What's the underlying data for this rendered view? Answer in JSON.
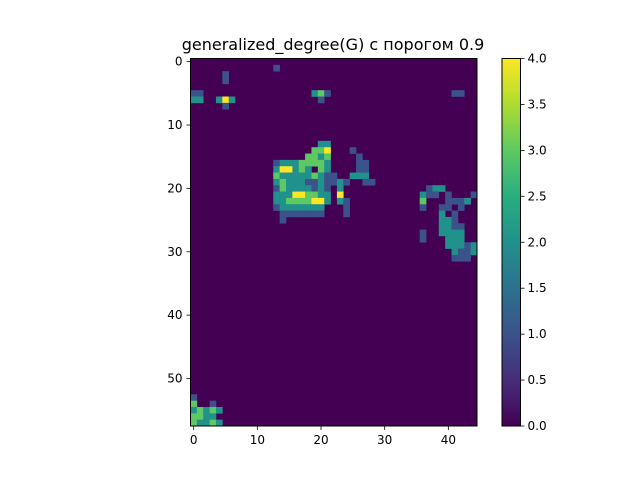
{
  "chart_data": {
    "type": "heatmap",
    "title": "generalized_degree(G) с порогом 0.9",
    "xlabel": "",
    "ylabel": "",
    "n_rows": 58,
    "n_cols": 45,
    "x_ticks": [
      0,
      10,
      20,
      30,
      40
    ],
    "y_ticks": [
      0,
      10,
      20,
      30,
      40,
      50
    ],
    "colormap": "viridis",
    "colorbar": {
      "min": 0.0,
      "max": 4.0,
      "ticks": [
        "0.0",
        "0.5",
        "1.0",
        "1.5",
        "2.0",
        "2.5",
        "3.0",
        "3.5",
        "4.0"
      ]
    },
    "grid": false,
    "cells": [
      [
        1,
        13,
        1
      ],
      [
        2,
        5,
        1
      ],
      [
        3,
        5,
        1
      ],
      [
        5,
        0,
        1
      ],
      [
        5,
        1,
        1
      ],
      [
        5,
        19,
        2
      ],
      [
        5,
        20,
        3
      ],
      [
        5,
        21,
        1
      ],
      [
        5,
        41,
        1
      ],
      [
        5,
        42,
        1
      ],
      [
        6,
        0,
        2
      ],
      [
        6,
        1,
        2
      ],
      [
        6,
        4,
        2
      ],
      [
        6,
        5,
        4
      ],
      [
        6,
        6,
        2
      ],
      [
        6,
        20,
        1
      ],
      [
        7,
        5,
        1
      ],
      [
        13,
        20,
        2
      ],
      [
        13,
        21,
        2
      ],
      [
        14,
        19,
        3
      ],
      [
        14,
        20,
        3
      ],
      [
        14,
        21,
        4
      ],
      [
        14,
        25,
        1
      ],
      [
        15,
        18,
        3
      ],
      [
        15,
        19,
        3
      ],
      [
        15,
        20,
        2
      ],
      [
        15,
        21,
        3
      ],
      [
        15,
        26,
        1
      ],
      [
        16,
        13,
        1
      ],
      [
        16,
        14,
        2
      ],
      [
        16,
        15,
        2
      ],
      [
        16,
        16,
        2
      ],
      [
        16,
        17,
        3
      ],
      [
        16,
        18,
        3
      ],
      [
        16,
        19,
        3
      ],
      [
        16,
        20,
        3
      ],
      [
        16,
        21,
        2
      ],
      [
        16,
        26,
        1
      ],
      [
        16,
        27,
        1
      ],
      [
        17,
        13,
        2
      ],
      [
        17,
        14,
        4
      ],
      [
        17,
        15,
        4
      ],
      [
        17,
        16,
        2
      ],
      [
        17,
        17,
        3
      ],
      [
        17,
        18,
        2
      ],
      [
        17,
        20,
        3
      ],
      [
        17,
        21,
        2
      ],
      [
        17,
        26,
        1
      ],
      [
        17,
        27,
        1
      ],
      [
        18,
        13,
        3
      ],
      [
        18,
        14,
        2
      ],
      [
        18,
        15,
        2
      ],
      [
        18,
        16,
        2
      ],
      [
        18,
        17,
        2
      ],
      [
        18,
        18,
        2
      ],
      [
        18,
        19,
        3
      ],
      [
        18,
        20,
        2
      ],
      [
        18,
        21,
        1
      ],
      [
        18,
        22,
        1
      ],
      [
        18,
        25,
        2
      ],
      [
        18,
        26,
        2
      ],
      [
        18,
        27,
        2
      ],
      [
        19,
        13,
        2
      ],
      [
        19,
        14,
        3
      ],
      [
        19,
        15,
        2
      ],
      [
        19,
        16,
        2
      ],
      [
        19,
        17,
        2
      ],
      [
        19,
        18,
        1
      ],
      [
        19,
        19,
        1
      ],
      [
        19,
        20,
        2
      ],
      [
        19,
        21,
        1
      ],
      [
        19,
        22,
        1
      ],
      [
        19,
        23,
        2
      ],
      [
        19,
        24,
        1
      ],
      [
        19,
        27,
        1
      ],
      [
        19,
        28,
        1
      ],
      [
        20,
        13,
        1
      ],
      [
        20,
        14,
        3
      ],
      [
        20,
        15,
        2
      ],
      [
        20,
        16,
        2
      ],
      [
        20,
        17,
        2
      ],
      [
        20,
        18,
        2
      ],
      [
        20,
        19,
        1
      ],
      [
        20,
        20,
        2
      ],
      [
        20,
        21,
        1
      ],
      [
        20,
        23,
        2
      ],
      [
        20,
        37,
        1
      ],
      [
        20,
        38,
        2
      ],
      [
        20,
        39,
        2
      ],
      [
        21,
        13,
        2
      ],
      [
        21,
        14,
        2
      ],
      [
        21,
        15,
        2
      ],
      [
        21,
        16,
        4
      ],
      [
        21,
        17,
        4
      ],
      [
        21,
        18,
        3
      ],
      [
        21,
        19,
        3
      ],
      [
        21,
        20,
        2
      ],
      [
        21,
        21,
        2
      ],
      [
        21,
        23,
        4
      ],
      [
        21,
        36,
        2
      ],
      [
        21,
        37,
        1
      ],
      [
        21,
        38,
        1
      ],
      [
        21,
        40,
        1
      ],
      [
        21,
        44,
        1
      ],
      [
        22,
        13,
        2
      ],
      [
        22,
        14,
        2
      ],
      [
        22,
        15,
        3
      ],
      [
        22,
        16,
        3
      ],
      [
        22,
        17,
        3
      ],
      [
        22,
        18,
        3
      ],
      [
        22,
        19,
        4
      ],
      [
        22,
        20,
        4
      ],
      [
        22,
        21,
        2
      ],
      [
        22,
        23,
        2
      ],
      [
        22,
        24,
        1
      ],
      [
        22,
        36,
        3
      ],
      [
        22,
        40,
        1
      ],
      [
        22,
        41,
        1
      ],
      [
        22,
        42,
        1
      ],
      [
        22,
        43,
        2
      ],
      [
        23,
        13,
        1
      ],
      [
        23,
        14,
        2
      ],
      [
        23,
        15,
        2
      ],
      [
        23,
        16,
        2
      ],
      [
        23,
        17,
        2
      ],
      [
        23,
        18,
        2
      ],
      [
        23,
        19,
        2
      ],
      [
        23,
        20,
        2
      ],
      [
        23,
        24,
        1
      ],
      [
        23,
        36,
        1
      ],
      [
        23,
        39,
        1
      ],
      [
        23,
        40,
        1
      ],
      [
        23,
        42,
        1
      ],
      [
        24,
        14,
        1
      ],
      [
        24,
        15,
        1
      ],
      [
        24,
        16,
        1
      ],
      [
        24,
        17,
        1
      ],
      [
        24,
        18,
        1
      ],
      [
        24,
        19,
        1
      ],
      [
        24,
        20,
        1
      ],
      [
        24,
        24,
        1
      ],
      [
        24,
        39,
        2
      ],
      [
        24,
        41,
        1
      ],
      [
        25,
        14,
        1
      ],
      [
        25,
        39,
        2
      ],
      [
        25,
        40,
        2
      ],
      [
        25,
        41,
        1
      ],
      [
        26,
        39,
        2
      ],
      [
        26,
        40,
        2
      ],
      [
        26,
        41,
        1
      ],
      [
        26,
        42,
        1
      ],
      [
        27,
        36,
        1
      ],
      [
        27,
        39,
        2
      ],
      [
        27,
        40,
        2
      ],
      [
        27,
        41,
        2
      ],
      [
        27,
        42,
        2
      ],
      [
        28,
        36,
        1
      ],
      [
        28,
        40,
        2
      ],
      [
        28,
        41,
        2
      ],
      [
        28,
        42,
        2
      ],
      [
        29,
        40,
        2
      ],
      [
        29,
        41,
        2
      ],
      [
        29,
        42,
        2
      ],
      [
        29,
        43,
        1
      ],
      [
        29,
        44,
        2
      ],
      [
        30,
        41,
        2
      ],
      [
        30,
        42,
        1
      ],
      [
        30,
        43,
        1
      ],
      [
        30,
        44,
        2
      ],
      [
        31,
        41,
        1
      ],
      [
        31,
        42,
        1
      ],
      [
        31,
        43,
        1
      ],
      [
        53,
        0,
        1
      ],
      [
        54,
        0,
        3
      ],
      [
        54,
        3,
        1
      ],
      [
        55,
        0,
        2
      ],
      [
        55,
        1,
        3
      ],
      [
        55,
        2,
        2
      ],
      [
        55,
        3,
        3
      ],
      [
        55,
        4,
        2
      ],
      [
        56,
        0,
        3
      ],
      [
        56,
        1,
        3
      ],
      [
        56,
        2,
        2
      ],
      [
        56,
        3,
        2
      ],
      [
        57,
        0,
        3
      ],
      [
        57,
        1,
        2
      ],
      [
        57,
        2,
        2
      ],
      [
        57,
        3,
        3
      ],
      [
        57,
        4,
        2
      ]
    ]
  }
}
